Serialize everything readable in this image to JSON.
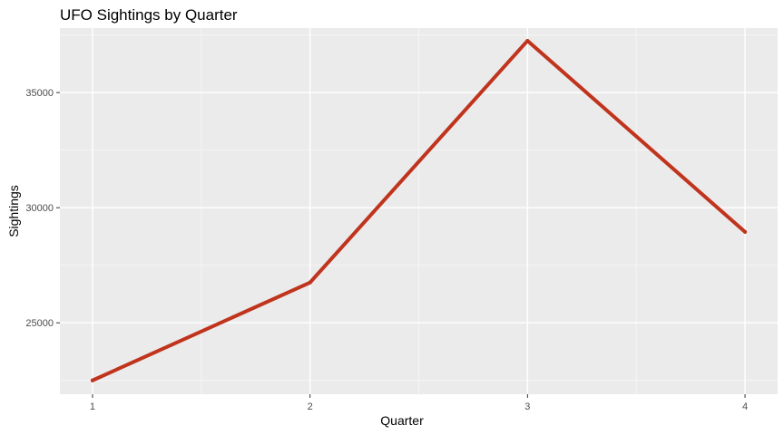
{
  "chart_data": {
    "type": "line",
    "title": "UFO Sightings by Quarter",
    "xlabel": "Quarter",
    "ylabel": "Sightings",
    "x": [
      1,
      2,
      3,
      4
    ],
    "x_ticks": [
      "1",
      "2",
      "3",
      "4"
    ],
    "xlim": [
      0.85,
      4.15
    ],
    "y_ticks": [
      25000,
      30000,
      35000
    ],
    "y_tick_labels": [
      "25000",
      "30000",
      "35000"
    ],
    "ylim": [
      21900,
      37800
    ],
    "grid": true,
    "legend": "none",
    "series": [
      {
        "values": [
          22500,
          26750,
          37250,
          28950
        ],
        "color": "#C0341D"
      }
    ],
    "colors": {
      "panel": "#EBEBEB",
      "grid_major": "#FFFFFF",
      "grid_minor": "#F5F5F5",
      "tick": "#333333"
    }
  }
}
